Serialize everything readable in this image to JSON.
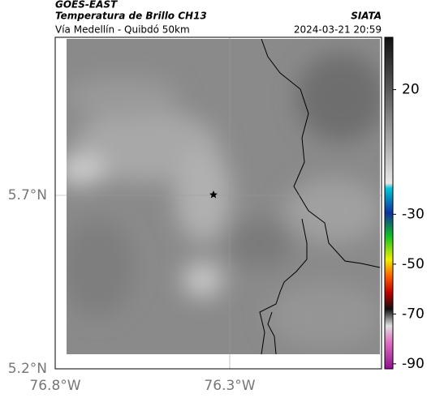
{
  "header": {
    "satellite": "GOES-EAST",
    "product": "Temperatura de Brillo CH13",
    "source": "SIATA",
    "subtitle": "Vía Medellín - Quibdó 50km",
    "timestamp": "2024-03-21 20:59"
  },
  "map": {
    "y_axis_labels": [
      "5.7°N",
      "5.2°N"
    ],
    "x_axis_labels": [
      "76.8°W",
      "76.3°W"
    ]
  },
  "colorbar": {
    "lim": [
      41,
      -92
    ],
    "ticks": [
      20,
      -30,
      -50,
      -70,
      -90
    ]
  }
}
